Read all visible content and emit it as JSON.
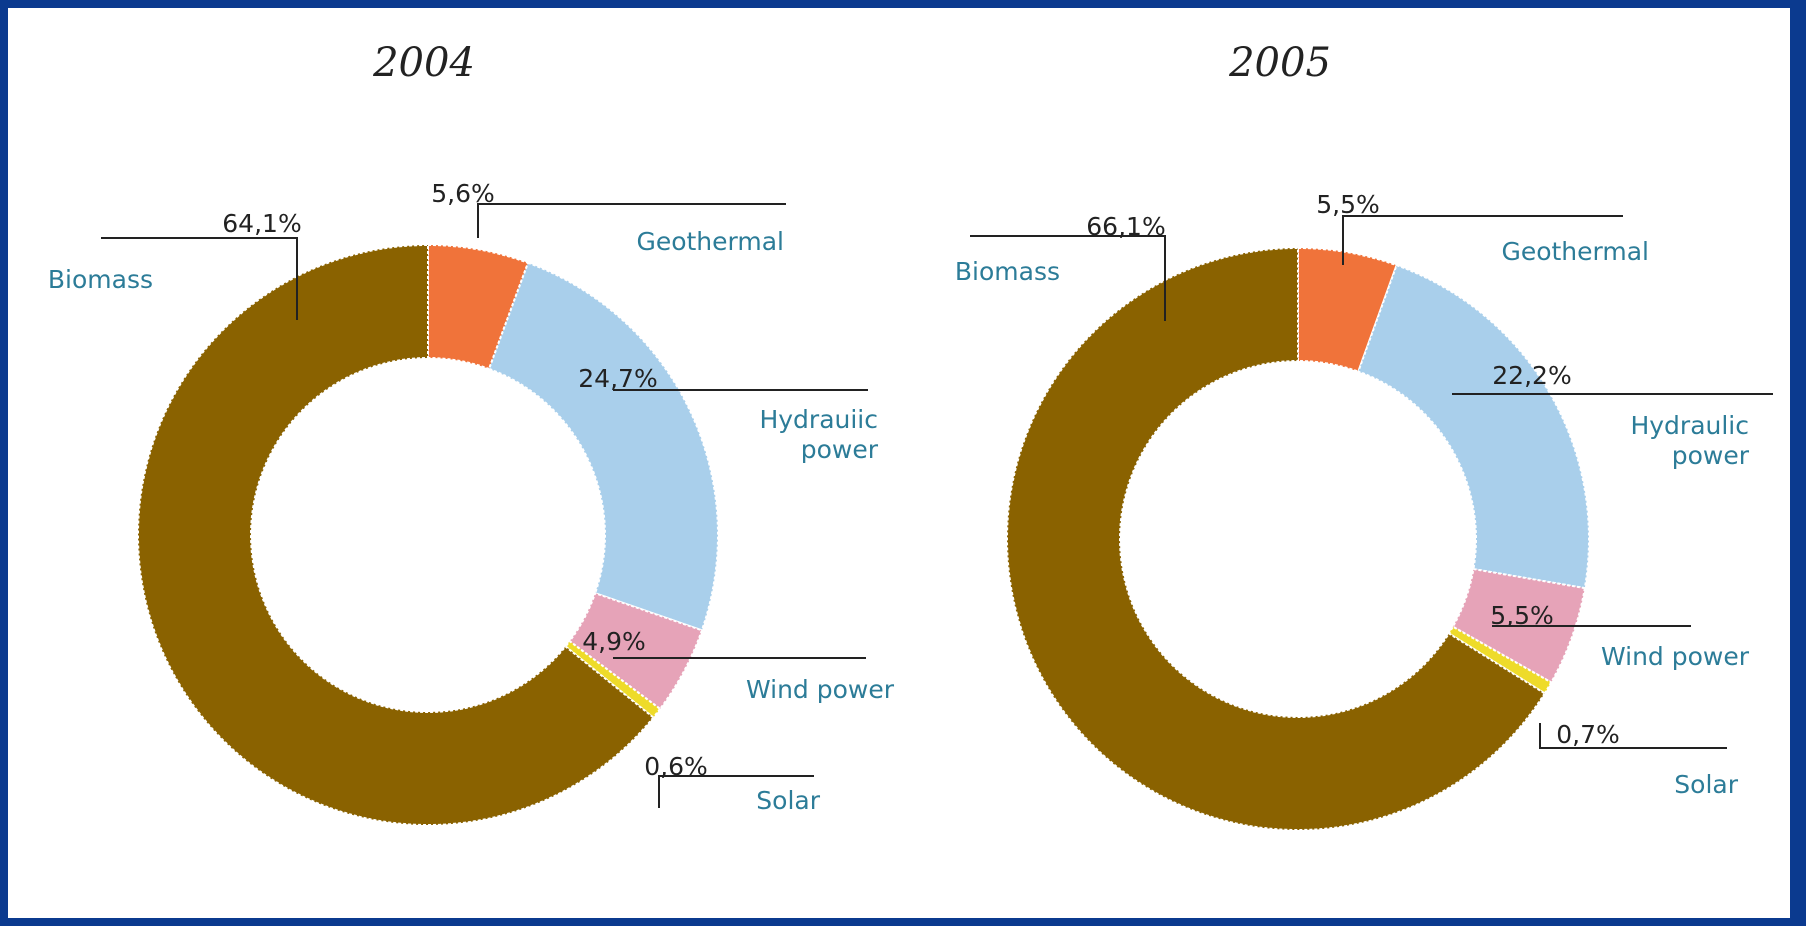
{
  "chart_data": [
    {
      "type": "pie",
      "title": "2004",
      "categories": [
        "Geothermal",
        "Hydraulic power",
        "Wind power",
        "Solar",
        "Biomass"
      ],
      "values": [
        5.6,
        24.7,
        4.9,
        0.6,
        64.1
      ],
      "value_labels": [
        "5,6%",
        "24,7%",
        "4,9%",
        "0,6%",
        "64,1%"
      ],
      "category_labels": [
        "Geothermal",
        [
          "Hydrauiic",
          "power"
        ],
        "Wind power",
        "Solar",
        "Biomass"
      ],
      "donut": true,
      "colors": [
        "#f0733a",
        "#a9cfeb",
        "#e6a3b8",
        "#eedb2a",
        "#8a6200"
      ]
    },
    {
      "type": "pie",
      "title": "2005",
      "categories": [
        "Geothermal",
        "Hydraulic power",
        "Wind power",
        "Solar",
        "Biomass"
      ],
      "values": [
        5.5,
        22.2,
        5.5,
        0.7,
        66.1
      ],
      "value_labels": [
        "5,5%",
        "22,2%",
        "5,5%",
        "0,7%",
        "66,1%"
      ],
      "category_labels": [
        "Geothermal",
        [
          "Hydraulic",
          "power"
        ],
        "Wind power",
        "Solar",
        "Biomass"
      ],
      "donut": true,
      "colors": [
        "#f0733a",
        "#a9cfeb",
        "#e6a3b8",
        "#eedb2a",
        "#8a6200"
      ]
    }
  ]
}
